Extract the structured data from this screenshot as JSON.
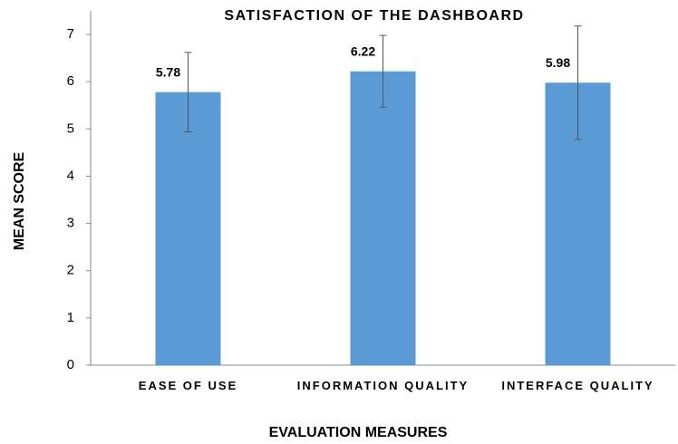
{
  "chart_data": {
    "type": "bar",
    "title": "SATISFACTION OF THE DASHBOARD",
    "xlabel": "EVALUATION MEASURES",
    "ylabel": "MEAN SCORE",
    "categories": [
      "EASE OF USE",
      "INFORMATION QUALITY",
      "INTERFACE QUALITY"
    ],
    "values": [
      5.78,
      6.22,
      5.98
    ],
    "errors": [
      0.84,
      0.76,
      1.2
    ],
    "color": "#5b9bd5",
    "ylim": [
      0,
      7.5
    ],
    "yticks": [
      0,
      1,
      2,
      3,
      4,
      5,
      6,
      7
    ],
    "grid": false
  }
}
